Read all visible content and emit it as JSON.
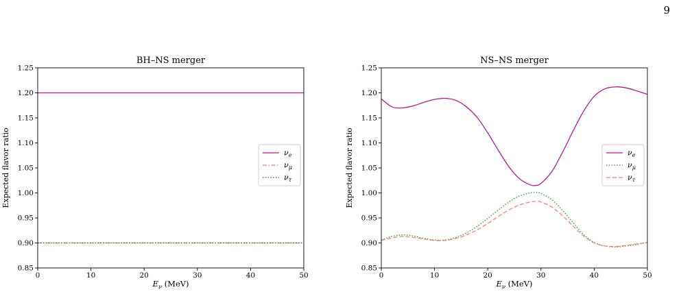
{
  "page_number": "9",
  "chart_data": [
    {
      "type": "line",
      "title": "BH–NS merger",
      "xlabel": "E_ν (MeV)",
      "xlabel_main": "E",
      "xlabel_sub": "ν",
      "xlabel_unit": " (MeV)",
      "ylabel": "Expected flavor ratio",
      "xlim": [
        0,
        50
      ],
      "ylim": [
        0.85,
        1.25
      ],
      "xticks": [
        0,
        10,
        20,
        30,
        40,
        50
      ],
      "xtick_labels": [
        "0",
        "10",
        "20",
        "30",
        "40",
        "50"
      ],
      "yticks": [
        0.85,
        0.9,
        0.95,
        1.0,
        1.05,
        1.1,
        1.15,
        1.2,
        1.25
      ],
      "ytick_labels": [
        "0.85",
        "0.90",
        "0.95",
        "1.00",
        "1.05",
        "1.10",
        "1.15",
        "1.20",
        "1.25"
      ],
      "grid": false,
      "legend_position": "center-right",
      "series": [
        {
          "name": "ν_e",
          "legend_main": "ν",
          "legend_sub": "e",
          "color": "#c0158c",
          "dash": "solid",
          "x": [
            0,
            50
          ],
          "values": [
            1.2,
            1.2
          ]
        },
        {
          "name": "ν_μ",
          "legend_main": "ν",
          "legend_sub": "μ",
          "color": "#f07878",
          "dash": "dashdot",
          "x": [
            0,
            50
          ],
          "values": [
            0.9,
            0.9
          ]
        },
        {
          "name": "ν_τ",
          "legend_main": "ν",
          "legend_sub": "τ",
          "color": "#1a7a1a",
          "dash": "dotted",
          "x": [
            0,
            50
          ],
          "values": [
            0.9,
            0.9
          ]
        }
      ]
    },
    {
      "type": "line",
      "title": "NS–NS merger",
      "xlabel": "E_ν (MeV)",
      "xlabel_main": "E",
      "xlabel_sub": "ν",
      "xlabel_unit": " (MeV)",
      "ylabel": "Expected flavor ratio",
      "xlim": [
        0,
        50
      ],
      "ylim": [
        0.85,
        1.25
      ],
      "xticks": [
        0,
        10,
        20,
        30,
        40,
        50
      ],
      "xtick_labels": [
        "0",
        "10",
        "20",
        "30",
        "40",
        "50"
      ],
      "yticks": [
        0.85,
        0.9,
        0.95,
        1.0,
        1.05,
        1.1,
        1.15,
        1.2,
        1.25
      ],
      "ytick_labels": [
        "0.85",
        "0.90",
        "0.95",
        "1.00",
        "1.05",
        "1.10",
        "1.15",
        "1.20",
        "1.25"
      ],
      "grid": false,
      "legend_position": "center-right",
      "series": [
        {
          "name": "ν_e",
          "legend_main": "ν",
          "legend_sub": "e",
          "color": "#c0158c",
          "dash": "solid",
          "x": [
            0,
            2,
            4,
            6,
            8,
            10,
            12,
            14,
            16,
            18,
            20,
            22,
            24,
            26,
            28,
            29,
            30,
            32,
            34,
            36,
            38,
            40,
            42,
            44,
            46,
            48,
            50
          ],
          "values": [
            1.188,
            1.172,
            1.17,
            1.174,
            1.181,
            1.187,
            1.189,
            1.185,
            1.172,
            1.151,
            1.12,
            1.085,
            1.052,
            1.028,
            1.016,
            1.015,
            1.019,
            1.042,
            1.08,
            1.123,
            1.163,
            1.193,
            1.208,
            1.212,
            1.21,
            1.204,
            1.197
          ]
        },
        {
          "name": "ν_μ",
          "legend_main": "ν",
          "legend_sub": "μ",
          "color": "#2e9a2e",
          "dash": "dotted",
          "x": [
            0,
            2,
            4,
            6,
            8,
            10,
            12,
            14,
            16,
            18,
            20,
            22,
            24,
            26,
            28,
            29,
            30,
            32,
            34,
            36,
            38,
            40,
            42,
            44,
            46,
            48,
            50
          ],
          "values": [
            0.906,
            0.913,
            0.916,
            0.914,
            0.909,
            0.906,
            0.906,
            0.911,
            0.92,
            0.933,
            0.949,
            0.966,
            0.982,
            0.994,
            1.0,
            1.001,
            0.999,
            0.987,
            0.966,
            0.941,
            0.917,
            0.901,
            0.894,
            0.892,
            0.894,
            0.897,
            0.901
          ]
        },
        {
          "name": "ν_τ",
          "legend_main": "ν",
          "legend_sub": "τ",
          "color": "#f08080",
          "dash": "dashed",
          "x": [
            0,
            2,
            4,
            6,
            8,
            10,
            12,
            14,
            16,
            18,
            20,
            22,
            24,
            26,
            28,
            29,
            30,
            32,
            34,
            36,
            38,
            40,
            42,
            44,
            46,
            48,
            50
          ],
          "values": [
            0.905,
            0.91,
            0.913,
            0.911,
            0.908,
            0.905,
            0.905,
            0.909,
            0.916,
            0.926,
            0.939,
            0.953,
            0.966,
            0.976,
            0.982,
            0.983,
            0.982,
            0.972,
            0.955,
            0.934,
            0.914,
            0.9,
            0.894,
            0.893,
            0.895,
            0.898,
            0.901
          ]
        }
      ]
    }
  ]
}
